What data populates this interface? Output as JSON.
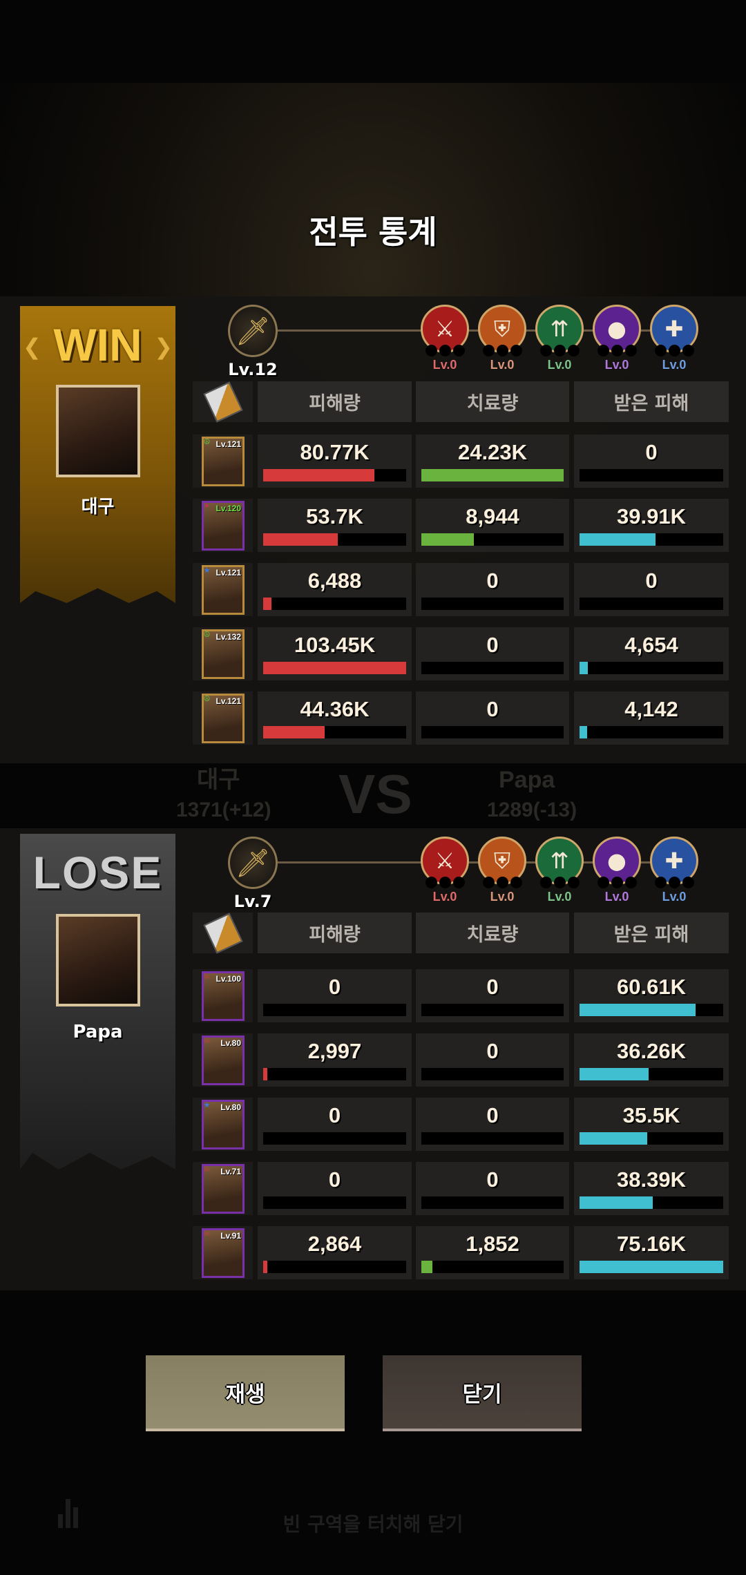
{
  "title": "전투 통계",
  "background": {
    "left_name": "대구",
    "right_name": "Papa",
    "vs": "VS",
    "left_score": "1371(+12)",
    "right_score": "1289(-13)"
  },
  "columns": [
    "피해량",
    "치료량",
    "받은 피해"
  ],
  "colors": {
    "damage": "#d63a3a",
    "healing": "#6ab33e",
    "received": "#3fbfd0"
  },
  "elements": [
    {
      "icon": "crossed-axes-icon",
      "color": "#a81c1c",
      "label_color": "#e06a6a",
      "level": "Lv.0"
    },
    {
      "icon": "shield-icon",
      "color": "#b8531c",
      "label_color": "#d9967a",
      "level": "Lv.0"
    },
    {
      "icon": "arrows-icon",
      "color": "#1b6a3a",
      "label_color": "#7cc48a",
      "level": "Lv.0"
    },
    {
      "icon": "grenade-icon",
      "color": "#5b2290",
      "label_color": "#b178de",
      "level": "Lv.0"
    },
    {
      "icon": "medical-cross-icon",
      "color": "#2852a0",
      "label_color": "#6f9ee0",
      "level": "Lv.0"
    }
  ],
  "teams": [
    {
      "result": "WIN",
      "name": "대구",
      "level": "Lv.12",
      "heroes": [
        {
          "level": "Lv.121",
          "faction": "peace-icon",
          "frame": "gold",
          "damage": "80.77K",
          "healing": "24.23K",
          "received": "0",
          "fill": [
            0.78,
            1.0,
            0
          ]
        },
        {
          "level": "Lv.120",
          "faction": "dragon-icon",
          "frame": "purple",
          "damage": "53.7K",
          "healing": "8,944",
          "received": "39.91K",
          "fill": [
            0.52,
            0.37,
            0.53
          ]
        },
        {
          "level": "Lv.121",
          "faction": "star-icon",
          "frame": "gold",
          "damage": "6,488",
          "healing": "0",
          "received": "0",
          "fill": [
            0.06,
            0,
            0
          ]
        },
        {
          "level": "Lv.132",
          "faction": "peace-icon",
          "frame": "gold",
          "damage": "103.45K",
          "healing": "0",
          "received": "4,654",
          "fill": [
            1.0,
            0,
            0.06
          ]
        },
        {
          "level": "Lv.121",
          "faction": "peace-icon",
          "frame": "gold",
          "damage": "44.36K",
          "healing": "0",
          "received": "4,142",
          "fill": [
            0.43,
            0,
            0.055
          ]
        }
      ]
    },
    {
      "result": "LOSE",
      "name": "Papa",
      "level": "Lv.7",
      "heroes": [
        {
          "level": "Lv.100",
          "faction": "skull-icon",
          "frame": "purple",
          "damage": "0",
          "healing": "0",
          "received": "60.61K",
          "fill": [
            0,
            0,
            0.81
          ]
        },
        {
          "level": "Lv.80",
          "faction": "skull-icon",
          "frame": "purple",
          "damage": "2,997",
          "healing": "0",
          "received": "36.26K",
          "fill": [
            0.03,
            0,
            0.48
          ]
        },
        {
          "level": "Lv.80",
          "faction": "star-icon",
          "frame": "purple",
          "damage": "0",
          "healing": "0",
          "received": "35.5K",
          "fill": [
            0,
            0,
            0.47
          ]
        },
        {
          "level": "Lv.71",
          "faction": "skull-icon",
          "frame": "purple",
          "damage": "0",
          "healing": "0",
          "received": "38.39K",
          "fill": [
            0,
            0,
            0.51
          ]
        },
        {
          "level": "Lv.91",
          "faction": "skull-icon",
          "frame": "purple",
          "damage": "2,864",
          "healing": "1,852",
          "received": "75.16K",
          "fill": [
            0.03,
            0.076,
            1.0
          ]
        }
      ]
    }
  ],
  "buttons": {
    "replay": "재생",
    "close": "닫기"
  },
  "hint": "빈 구역을 터치해 닫기"
}
